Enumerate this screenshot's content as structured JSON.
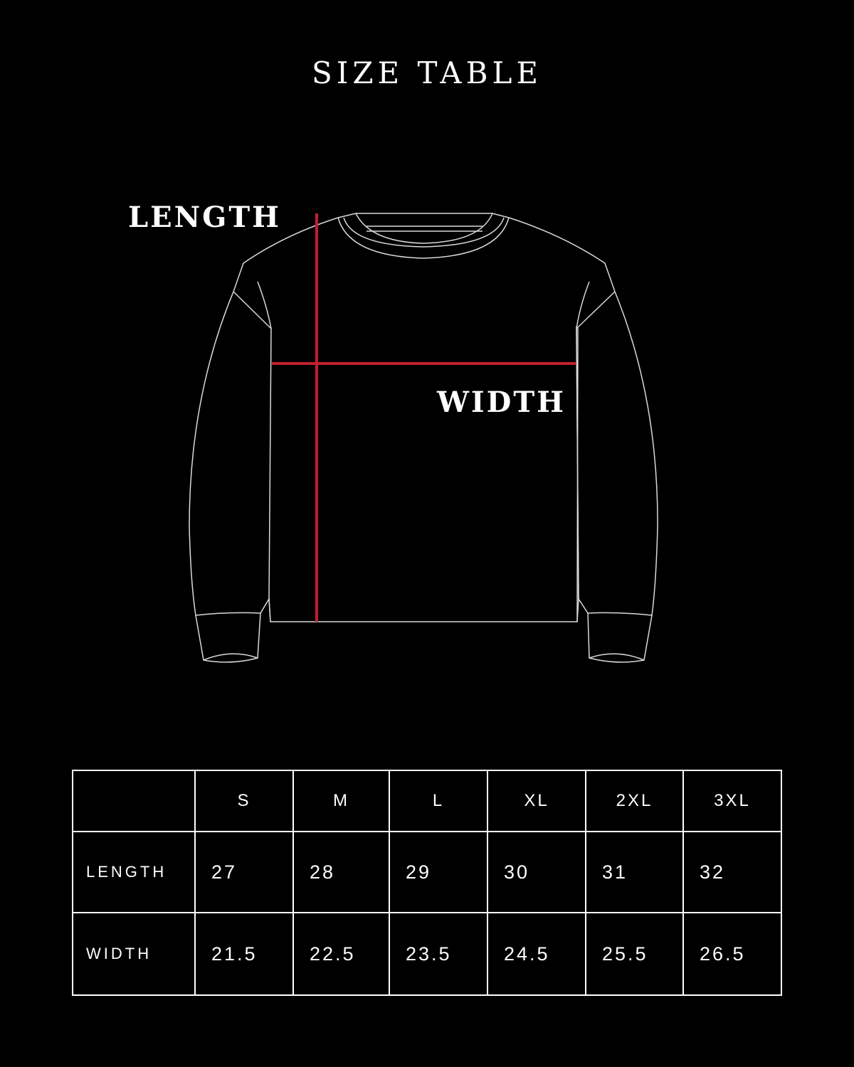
{
  "title": "SIZE TABLE",
  "diagram": {
    "length_label": "LENGTH",
    "width_label": "WIDTH",
    "measure_color": "#c0202e",
    "outline_color": "#d9d9d9"
  },
  "table": {
    "sizes": [
      "S",
      "M",
      "L",
      "XL",
      "2XL",
      "3XL"
    ],
    "rows": [
      {
        "label": "LENGTH",
        "values": [
          "27",
          "28",
          "29",
          "30",
          "31",
          "32"
        ]
      },
      {
        "label": "WIDTH",
        "values": [
          "21.5",
          "22.5",
          "23.5",
          "24.5",
          "25.5",
          "26.5"
        ]
      }
    ]
  }
}
